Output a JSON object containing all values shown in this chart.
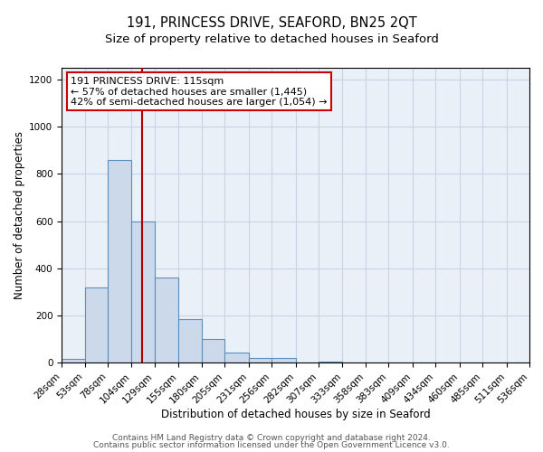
{
  "title": "191, PRINCESS DRIVE, SEAFORD, BN25 2QT",
  "subtitle": "Size of property relative to detached houses in Seaford",
  "xlabel": "Distribution of detached houses by size in Seaford",
  "ylabel": "Number of detached properties",
  "bin_edges": [
    28,
    53,
    78,
    104,
    129,
    155,
    180,
    205,
    231,
    256,
    282,
    307,
    333,
    358,
    383,
    409,
    434,
    460,
    485,
    511,
    536
  ],
  "bar_heights": [
    15,
    320,
    860,
    600,
    360,
    185,
    100,
    45,
    20,
    20,
    0,
    5,
    0,
    0,
    0,
    0,
    0,
    0,
    0,
    0
  ],
  "bar_color": "#ccd9ea",
  "bar_edgecolor": "#5b8fbd",
  "bar_linewidth": 0.8,
  "vline_x": 115,
  "vline_color": "#aa0000",
  "vline_linewidth": 1.5,
  "ylim": [
    0,
    1250
  ],
  "yticks": [
    0,
    200,
    400,
    600,
    800,
    1000,
    1200
  ],
  "annotation_title": "191 PRINCESS DRIVE: 115sqm",
  "annotation_line1": "← 57% of detached houses are smaller (1,445)",
  "annotation_line2": "42% of semi-detached houses are larger (1,054) →",
  "annotation_box_color": "#ffffff",
  "annotation_box_edgecolor": "#cc0000",
  "footer1": "Contains HM Land Registry data © Crown copyright and database right 2024.",
  "footer2": "Contains public sector information licensed under the Open Government Licence v3.0.",
  "grid_color": "#c8d4e4",
  "bg_color": "#eaf0f8",
  "title_fontsize": 10.5,
  "subtitle_fontsize": 9.5,
  "xlabel_fontsize": 8.5,
  "ylabel_fontsize": 8.5,
  "footer_fontsize": 6.5,
  "tick_fontsize": 7.5,
  "annotation_fontsize": 8
}
